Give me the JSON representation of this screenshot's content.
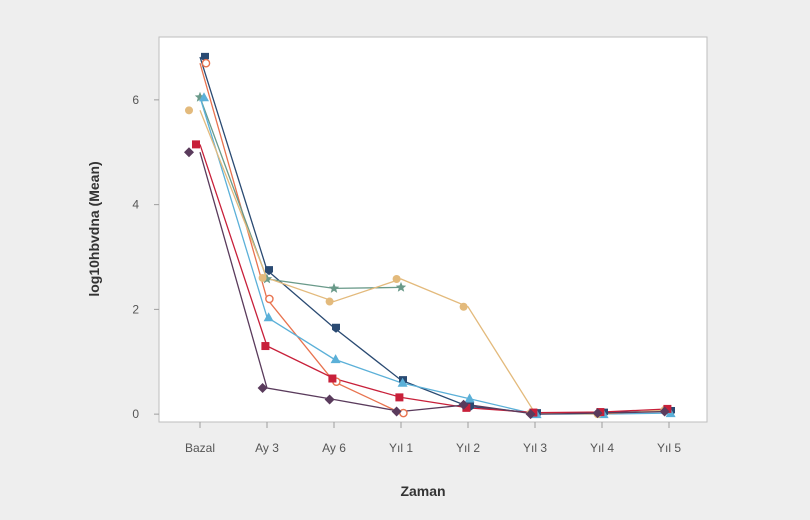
{
  "chart_data": {
    "type": "line",
    "title": "",
    "xlabel": "Zaman",
    "ylabel": "log10hbvdna (Mean)",
    "categories": [
      "Bazal",
      "Ay 3",
      "Ay 6",
      "Yıl 1",
      "Yıl 2",
      "Yıl 3",
      "Yıl 4",
      "Yıl 5"
    ],
    "ylim": [
      -0.15,
      7.2
    ],
    "yticks": [
      "0",
      "2",
      "4",
      "6"
    ],
    "grid": false,
    "legend": "none",
    "series": [
      {
        "color": "#2a4a72",
        "marker": "shield",
        "values": [
          6.82,
          2.75,
          1.65,
          0.65,
          0.15,
          0.02,
          0.03,
          0.06
        ]
      },
      {
        "color": "#e8734f",
        "marker": "circle-open",
        "values": [
          6.7,
          2.2,
          0.62,
          0.02,
          null,
          null,
          null,
          null
        ]
      },
      {
        "color": "#6a9a8a",
        "marker": "star",
        "values": [
          6.05,
          2.58,
          2.4,
          2.42,
          null,
          null,
          null,
          null
        ]
      },
      {
        "color": "#5bb0d8",
        "marker": "triangle",
        "values": [
          6.05,
          1.85,
          1.05,
          0.6,
          0.3,
          0.0,
          0.0,
          0.02
        ]
      },
      {
        "color": "#e3ba7c",
        "marker": "circle",
        "values": [
          5.8,
          2.6,
          2.15,
          2.58,
          2.05,
          0.02,
          0.0,
          0.08
        ]
      },
      {
        "color": "#c8203a",
        "marker": "square",
        "values": [
          5.15,
          1.3,
          0.68,
          0.32,
          0.12,
          0.03,
          0.04,
          0.1
        ]
      },
      {
        "color": "#5a3b5c",
        "marker": "diamond",
        "values": [
          5.0,
          0.5,
          0.28,
          0.05,
          0.18,
          0.0,
          0.02,
          0.05
        ]
      }
    ]
  }
}
